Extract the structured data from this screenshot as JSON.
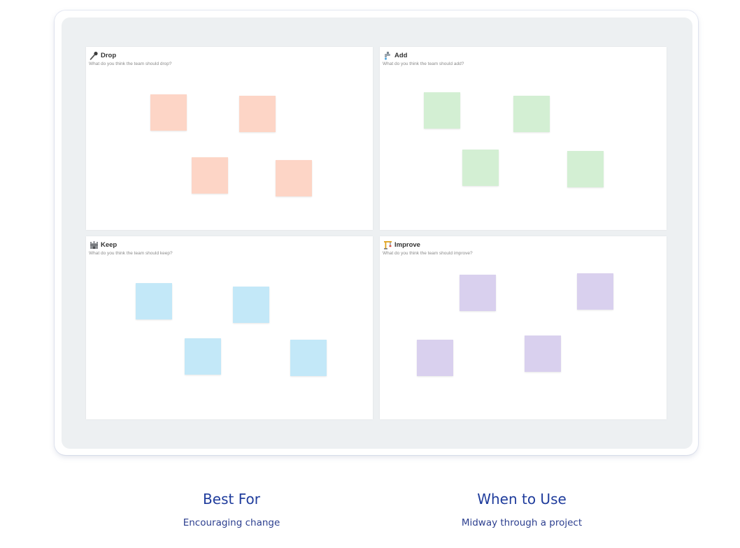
{
  "board": {
    "quadrants": [
      {
        "key": "drop",
        "icon": "microphone-icon",
        "title": "Drop",
        "subtitle": "What do you think the team should drop?",
        "note_color": "#fdd5c6",
        "note_count": 4
      },
      {
        "key": "add",
        "icon": "faucet-icon",
        "title": "Add",
        "subtitle": "What do you think the team should add?",
        "note_color": "#d3efd3",
        "note_count": 4
      },
      {
        "key": "keep",
        "icon": "castle-icon",
        "title": "Keep",
        "subtitle": "What do you think the team should keep?",
        "note_color": "#c3e8f8",
        "note_count": 4
      },
      {
        "key": "improve",
        "icon": "construction-crane-icon",
        "title": "Improve",
        "subtitle": "What do you think the team should improve?",
        "note_color": "#d9d0ee",
        "note_count": 4
      }
    ]
  },
  "info": {
    "best_for": {
      "title": "Best For",
      "value": "Encouraging change"
    },
    "when_to_use": {
      "title": "When to Use",
      "value": "Midway through a project"
    }
  }
}
